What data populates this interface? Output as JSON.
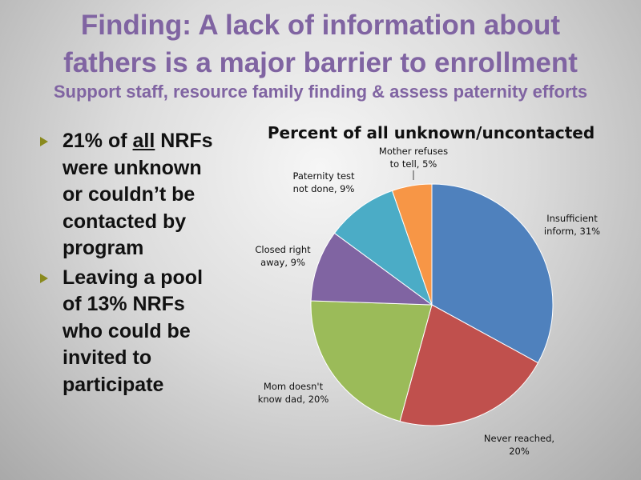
{
  "slide": {
    "title_line1": "Finding: A lack of information about",
    "title_line2": "fathers is a major barrier to enrollment",
    "subtitle": "Support staff, resource family finding & assess paternity efforts",
    "bullets": [
      {
        "before": "21% of ",
        "underlined": "all",
        "after": " NRFs were unknown or couldn’t be contacted by program"
      },
      {
        "text": "Leaving a pool of 13% NRFs who could be invited to participate"
      }
    ]
  },
  "chart_data": {
    "type": "pie",
    "title": "Percent of all unknown/uncontacted",
    "slices": [
      {
        "label_lines": [
          "Insufficient",
          "inform, 31%"
        ],
        "value": 31,
        "color": "#4f81bd"
      },
      {
        "label_lines": [
          "Never reached,",
          "20%"
        ],
        "value": 20,
        "color": "#c0504d"
      },
      {
        "label_lines": [
          "Mom doesn't",
          "know dad, 20%"
        ],
        "value": 20,
        "color": "#9bbb59"
      },
      {
        "label_lines": [
          "Closed right",
          "away, 9%"
        ],
        "value": 9,
        "color": "#8064a2"
      },
      {
        "label_lines": [
          "Paternity test",
          "not done, 9%"
        ],
        "value": 9,
        "color": "#4bacc6"
      },
      {
        "label_lines": [
          "Mother refuses",
          "to tell, 5%"
        ],
        "value": 5,
        "color": "#f79646"
      }
    ]
  }
}
